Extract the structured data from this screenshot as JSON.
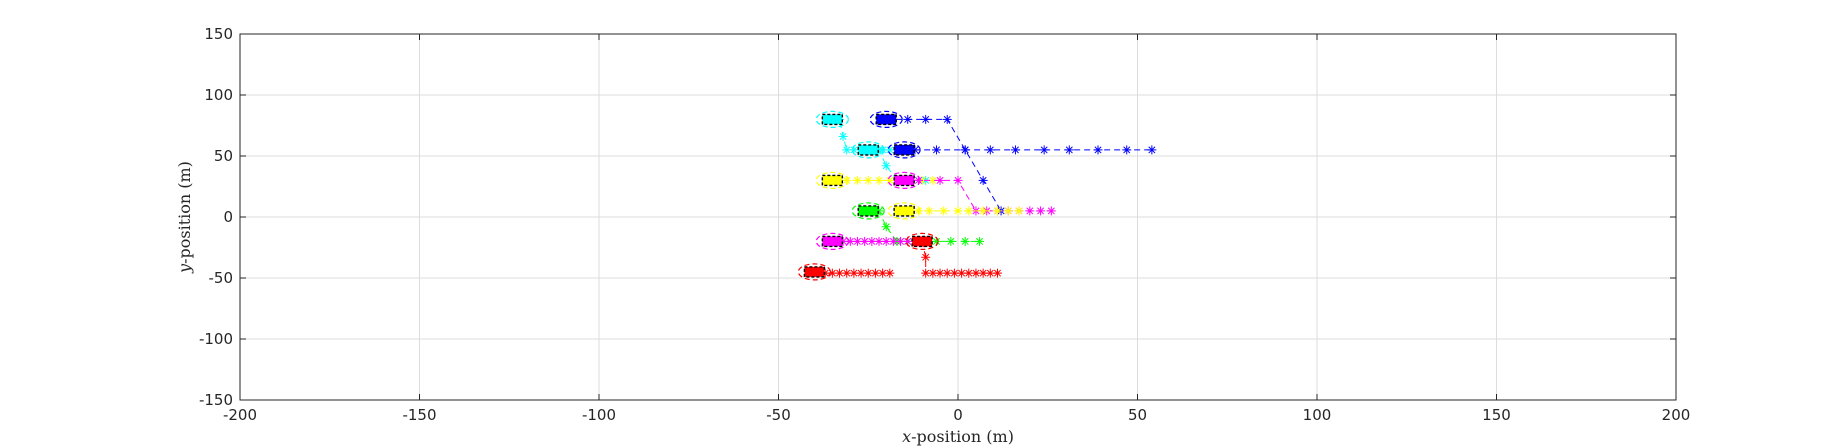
{
  "chart_data": {
    "type": "scatter",
    "title": "",
    "xlabel_var": "x",
    "xlabel_rest": "-position (m)",
    "ylabel_var": "y",
    "ylabel_rest": "-position (m)",
    "xlim": [
      -200,
      200
    ],
    "ylim": [
      -150,
      150
    ],
    "xticks": [
      -200,
      -150,
      -100,
      -50,
      0,
      50,
      100,
      150,
      200
    ],
    "yticks": [
      -150,
      -100,
      -50,
      0,
      50,
      100,
      150
    ],
    "xtick_labels": [
      "-200",
      "-150",
      "-100",
      "-50",
      "0",
      "50",
      "100",
      "150",
      "200"
    ],
    "ytick_labels": [
      "-150",
      "-100",
      "-50",
      "0",
      "50",
      "100",
      "150"
    ],
    "grid": true,
    "vehicles": [
      {
        "color": "#00FFFF",
        "position": [
          -35,
          80
        ],
        "path": [
          [
            -35,
            80
          ],
          [
            -33,
            80
          ],
          [
            -32,
            66
          ],
          [
            -31,
            55
          ],
          [
            -29,
            55
          ],
          [
            -27,
            55
          ],
          [
            -25,
            55
          ],
          [
            -23,
            55
          ],
          [
            -21,
            55
          ],
          [
            -19,
            55
          ]
        ]
      },
      {
        "color": "#0000FF",
        "position": [
          -20,
          80
        ],
        "path": [
          [
            -20,
            80
          ],
          [
            -14,
            80
          ],
          [
            -9,
            80
          ],
          [
            -3,
            80
          ],
          [
            2,
            55
          ],
          [
            7,
            30
          ],
          [
            12,
            5
          ]
        ]
      },
      {
        "color": "#00FFFF",
        "position": [
          -25,
          55
        ],
        "path": [
          [
            -25,
            55
          ],
          [
            -22,
            55
          ],
          [
            -20,
            42
          ],
          [
            -17,
            30
          ],
          [
            -15,
            30
          ],
          [
            -13,
            30
          ],
          [
            -11,
            30
          ],
          [
            -9,
            30
          ]
        ]
      },
      {
        "color": "#0000FF",
        "position": [
          -15,
          55
        ],
        "path": [
          [
            -15,
            55
          ],
          [
            -12,
            55
          ],
          [
            -6,
            55
          ],
          [
            2,
            55
          ],
          [
            9,
            55
          ],
          [
            16,
            55
          ],
          [
            24,
            55
          ],
          [
            31,
            55
          ],
          [
            39,
            55
          ],
          [
            47,
            55
          ],
          [
            54,
            55
          ]
        ]
      },
      {
        "color": "#FFFF00",
        "position": [
          -35,
          30
        ],
        "path": [
          [
            -35,
            30
          ],
          [
            -31,
            30
          ],
          [
            -28,
            30
          ],
          [
            -25,
            30
          ],
          [
            -22,
            30
          ],
          [
            -19,
            30
          ],
          [
            -16,
            30
          ],
          [
            -13,
            30
          ],
          [
            -10,
            30
          ],
          [
            -7,
            30
          ]
        ]
      },
      {
        "color": "#FF00FF",
        "position": [
          -15,
          30
        ],
        "path": [
          [
            -15,
            30
          ],
          [
            -11,
            30
          ],
          [
            -5,
            30
          ],
          [
            0,
            30
          ],
          [
            5,
            5
          ],
          [
            8,
            5
          ],
          [
            11,
            5
          ],
          [
            14,
            5
          ],
          [
            17,
            5
          ],
          [
            20,
            5
          ],
          [
            23,
            5
          ],
          [
            26,
            5
          ]
        ]
      },
      {
        "color": "#00FF00",
        "position": [
          -25,
          5
        ],
        "path": [
          [
            -25,
            5
          ],
          [
            -22,
            5
          ],
          [
            -20,
            -8
          ],
          [
            -17,
            -20
          ],
          [
            -14,
            -20
          ],
          [
            -10,
            -20
          ],
          [
            -6,
            -20
          ],
          [
            -2,
            -20
          ],
          [
            2,
            -20
          ],
          [
            6,
            -20
          ]
        ]
      },
      {
        "color": "#FFFF00",
        "position": [
          -15,
          5
        ],
        "path": [
          [
            -15,
            5
          ],
          [
            -11,
            5
          ],
          [
            -8,
            5
          ],
          [
            -4,
            5
          ],
          [
            0,
            5
          ],
          [
            3,
            5
          ],
          [
            7,
            5
          ],
          [
            11,
            5
          ],
          [
            14,
            5
          ],
          [
            17,
            5
          ]
        ]
      },
      {
        "color": "#FF00FF",
        "position": [
          -35,
          -20
        ],
        "path": [
          [
            -35,
            -20
          ],
          [
            -32,
            -20
          ],
          [
            -30,
            -20
          ],
          [
            -28,
            -20
          ],
          [
            -26,
            -20
          ],
          [
            -24,
            -20
          ],
          [
            -22,
            -20
          ],
          [
            -20,
            -20
          ],
          [
            -18,
            -20
          ],
          [
            -16,
            -20
          ],
          [
            -14,
            -20
          ]
        ]
      },
      {
        "color": "#FF0000",
        "position": [
          -10,
          -20
        ],
        "path": [
          [
            -10,
            -20
          ],
          [
            -9,
            -33
          ],
          [
            -9,
            -46
          ],
          [
            -7,
            -46
          ],
          [
            -5,
            -46
          ],
          [
            -3,
            -46
          ],
          [
            -1,
            -46
          ],
          [
            1,
            -46
          ],
          [
            3,
            -46
          ],
          [
            5,
            -46
          ],
          [
            7,
            -46
          ],
          [
            9,
            -46
          ],
          [
            11,
            -46
          ]
        ]
      },
      {
        "color": "#FF0000",
        "position": [
          -40,
          -45
        ],
        "path": [
          [
            -40,
            -45
          ],
          [
            -37,
            -46
          ],
          [
            -35,
            -46
          ],
          [
            -33,
            -46
          ],
          [
            -31,
            -46
          ],
          [
            -29,
            -46
          ],
          [
            -27,
            -46
          ],
          [
            -25,
            -46
          ],
          [
            -23,
            -46
          ],
          [
            -21,
            -46
          ],
          [
            -19,
            -46
          ]
        ]
      }
    ]
  }
}
